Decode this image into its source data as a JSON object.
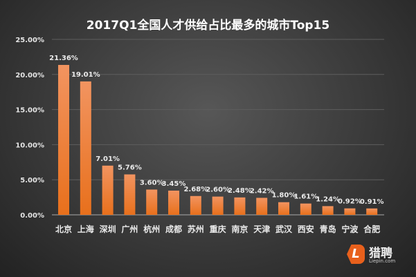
{
  "title": "2017Q1全国人才供给占比最多的城市Top15",
  "chart_data": {
    "type": "bar",
    "title": "2017Q1全国人才供给占比最多的城市Top15",
    "categories": [
      "北京",
      "上海",
      "深圳",
      "广州",
      "杭州",
      "成都",
      "苏州",
      "重庆",
      "南京",
      "天津",
      "武汉",
      "西安",
      "青岛",
      "宁波",
      "合肥"
    ],
    "values": [
      21.36,
      19.01,
      7.01,
      5.76,
      3.6,
      3.45,
      2.68,
      2.6,
      2.48,
      2.42,
      1.8,
      1.61,
      1.24,
      0.92,
      0.91
    ],
    "value_labels": [
      "21.36%",
      "19.01%",
      "7.01%",
      "5.76%",
      "3.60%",
      "3.45%",
      "2.68%",
      "2.60%",
      "2.48%",
      "2.42%",
      "1.80%",
      "1.61%",
      "1.24%",
      "0.92%",
      "0.91%"
    ],
    "yticks": [
      "0.00%",
      "5.00%",
      "10.00%",
      "15.00%",
      "20.00%",
      "25.00%"
    ],
    "ylim": [
      0,
      25
    ],
    "xlabel": "",
    "ylabel": "",
    "grid": true,
    "bar_color_top": "#f29460",
    "bar_color_bottom": "#e8701c"
  },
  "logo": {
    "name": "猎聘",
    "url": "Liepin.com",
    "letter": "L"
  }
}
